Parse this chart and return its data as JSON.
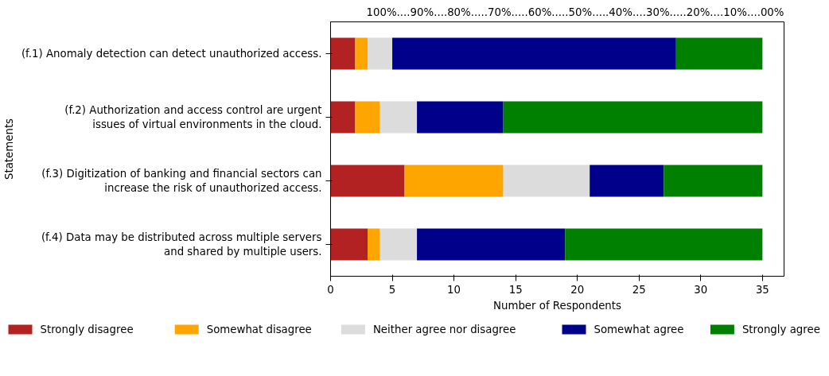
{
  "chart_data": {
    "type": "bar",
    "orientation": "horizontal",
    "stacked": true,
    "categories": [
      "(f.1) Anomaly detection can detect unauthorized access.",
      "(f.2) Authorization and access control are urgent\nissues of virtual environments in the cloud.",
      "(f.3) Digitization of banking and financial sectors can\nincrease the risk of unauthorized access.",
      "(f.4) Data may be distributed across multiple servers\nand shared by multiple users."
    ],
    "series": [
      {
        "name": "Strongly disagree",
        "color": "#b22222",
        "values": [
          2,
          2,
          6,
          3
        ]
      },
      {
        "name": "Somewhat disagree",
        "color": "#ffa500",
        "values": [
          1,
          2,
          8,
          1
        ]
      },
      {
        "name": "Neither agree nor disagree",
        "color": "#dcdcdc",
        "values": [
          2,
          3,
          7,
          3
        ]
      },
      {
        "name": "Somewhat agree",
        "color": "#00008b",
        "values": [
          23,
          7,
          6,
          12
        ]
      },
      {
        "name": "Strongly agree",
        "color": "#008000",
        "values": [
          7,
          21,
          8,
          16
        ]
      }
    ],
    "xlim": [
      0,
      36.75
    ],
    "xticks": [
      0,
      5,
      10,
      15,
      20,
      25,
      30,
      35
    ],
    "xlabel": "Number of Respondents",
    "ylabel": "Statements",
    "annotations": [
      "100%....90%....80%.....70%.....60%.....50%.....40%....30%.....20%....10%....00%"
    ],
    "grid": false,
    "legend": "bottom"
  }
}
